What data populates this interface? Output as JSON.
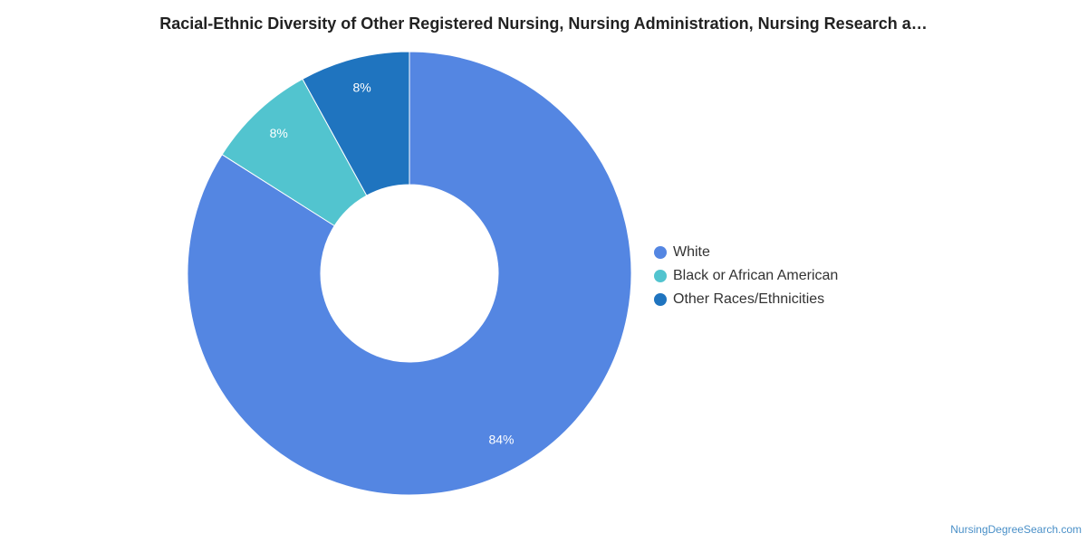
{
  "chart_data": {
    "type": "pie",
    "variant": "donut",
    "title": "Racial-Ethnic Diversity of Other Registered Nursing, Nursing Administration, Nursing Research a…",
    "categories": [
      "White",
      "Black or African American",
      "Other Races/Ethnicities"
    ],
    "values": [
      84,
      8,
      8
    ],
    "data_labels": [
      "84%",
      "8%",
      "8%"
    ],
    "colors": [
      "#5486e2",
      "#52c4cf",
      "#1f74bf"
    ],
    "legend_position": "right"
  },
  "watermark": "NursingDegreeSearch.com"
}
